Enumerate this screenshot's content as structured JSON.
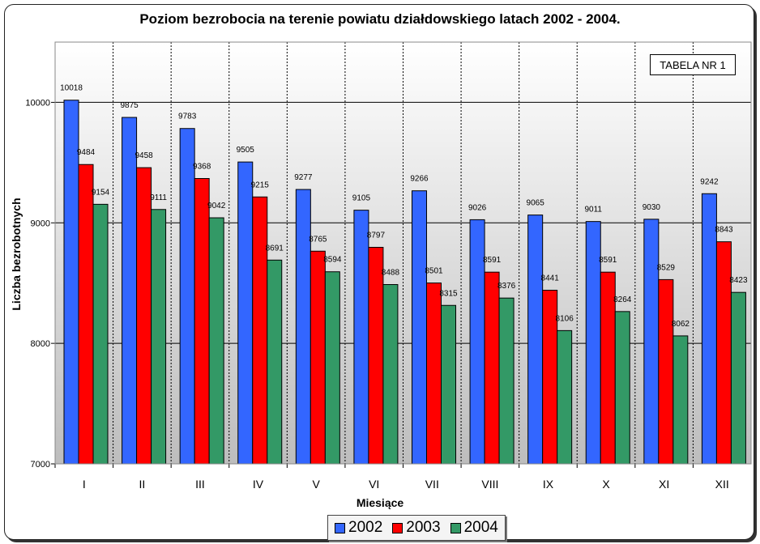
{
  "chart_data": {
    "type": "bar",
    "title": "Poziom bezrobocia na terenie powiatu działdowskiego latach 2002 - 2004.",
    "xlabel": "Miesiące",
    "ylabel": "Liczba bezrobotnych",
    "ylim": [
      7000,
      10500
    ],
    "yticks": [
      7000,
      8000,
      9000,
      10000
    ],
    "grid": true,
    "legend_position": "bottom",
    "annotation": "TABELA NR 1",
    "categories": [
      "I",
      "II",
      "III",
      "IV",
      "V",
      "VI",
      "VII",
      "VIII",
      "IX",
      "X",
      "XI",
      "XII"
    ],
    "series": [
      {
        "name": "2002",
        "color": "#3366ff",
        "values": [
          10018,
          9875,
          9783,
          9505,
          9277,
          9105,
          9266,
          9026,
          9065,
          9011,
          9030,
          9242
        ]
      },
      {
        "name": "2003",
        "color": "#ff0000",
        "values": [
          9484,
          9458,
          9368,
          9215,
          8765,
          8797,
          8501,
          8591,
          8441,
          8591,
          8529,
          8843
        ]
      },
      {
        "name": "2004",
        "color": "#339966",
        "values": [
          9154,
          9111,
          9042,
          8691,
          8594,
          8488,
          8315,
          8376,
          8106,
          8264,
          8062,
          8423
        ]
      }
    ]
  }
}
